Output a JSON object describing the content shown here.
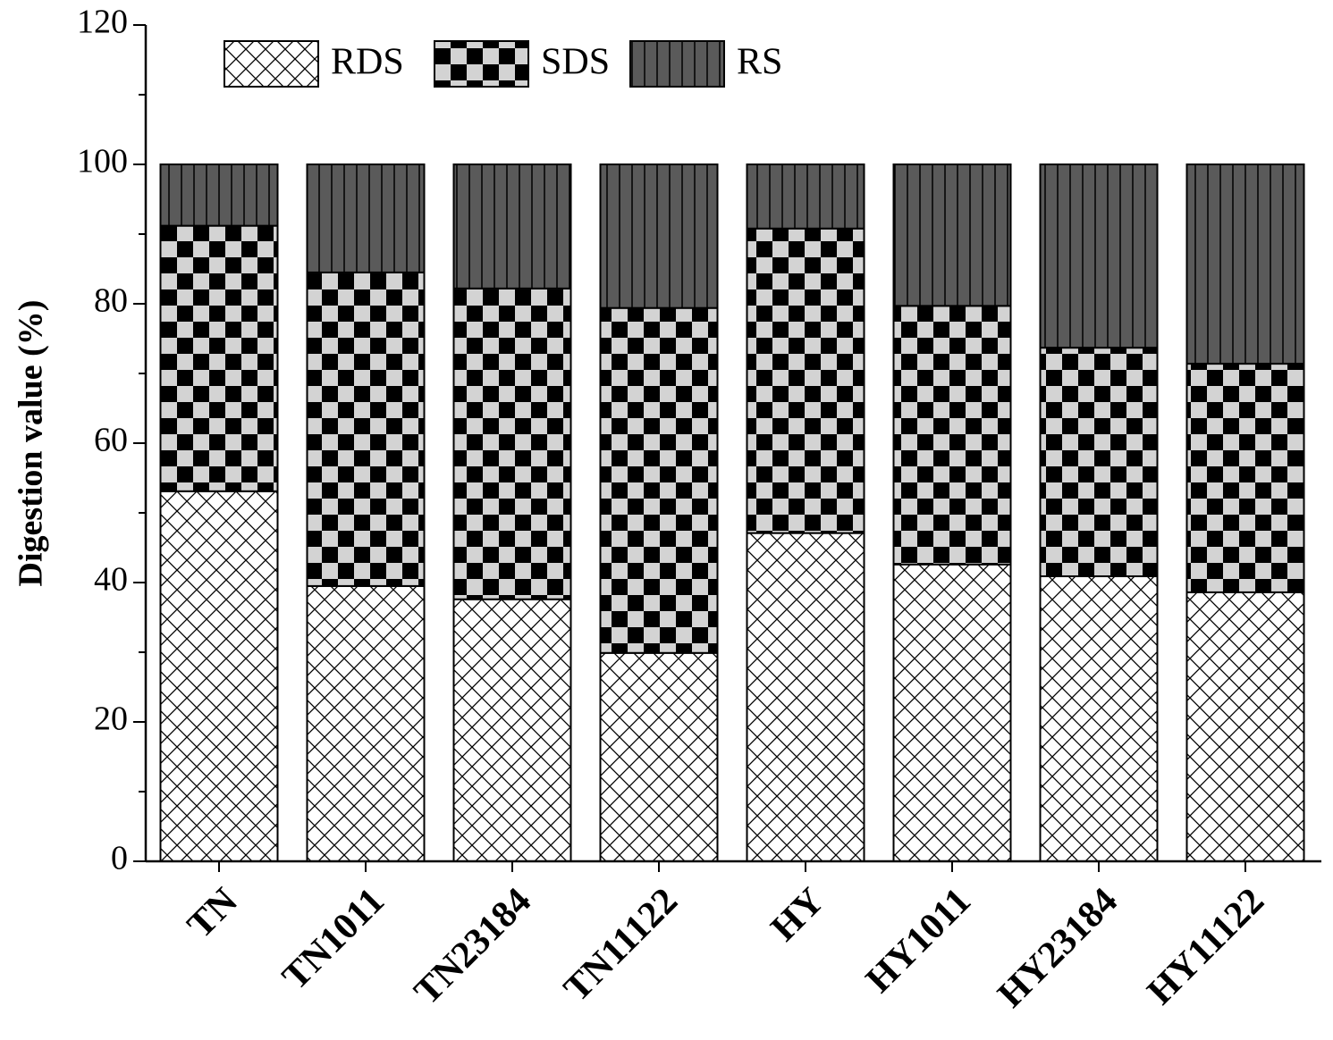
{
  "chart_data": {
    "type": "stacked_bar",
    "y_label": "Digestion value (%)",
    "categories": [
      "TN",
      "TN1011",
      "TN23184",
      "TN11122",
      "HY",
      "HY1011",
      "HY23184",
      "HY11122"
    ],
    "series": [
      {
        "name": "RDS",
        "color": "#ffffff",
        "pattern": "crosshatch",
        "values": [
          53.1,
          39.5,
          37.6,
          29.9,
          47.1,
          42.6,
          40.9,
          38.6
        ]
      },
      {
        "name": "SDS",
        "color": "#d3d3d3",
        "pattern": "checker",
        "values": [
          38.1,
          45.0,
          44.6,
          49.5,
          43.7,
          37.1,
          32.8,
          32.8
        ]
      },
      {
        "name": "RS",
        "color": "#5a5a5a",
        "pattern": "vertical",
        "values": [
          8.8,
          15.5,
          17.8,
          20.6,
          9.2,
          20.3,
          26.3,
          28.6
        ]
      }
    ],
    "ylim": [
      0,
      120
    ],
    "yticks": [
      0,
      20,
      40,
      60,
      80,
      100,
      120
    ],
    "yminorticks": [
      10,
      30,
      50,
      70,
      90,
      110
    ],
    "grid": false
  }
}
